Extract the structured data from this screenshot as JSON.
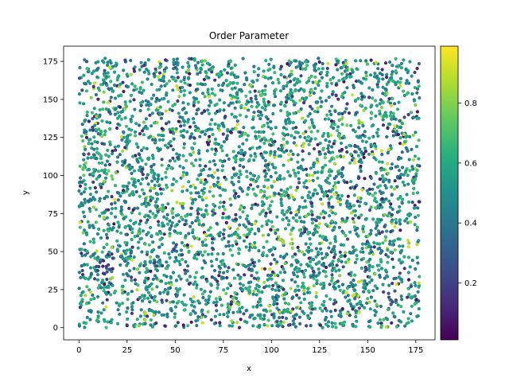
{
  "chart_data": {
    "type": "scatter",
    "title": "Order Parameter",
    "xlabel": "x",
    "ylabel": "y",
    "xlim": [
      -8,
      185
    ],
    "ylim": [
      -8,
      185
    ],
    "x_ticks": [
      0,
      25,
      50,
      75,
      100,
      125,
      150,
      175
    ],
    "y_ticks": [
      0,
      25,
      50,
      75,
      100,
      125,
      150,
      175
    ],
    "colorbar": {
      "colormap": "viridis",
      "range": [
        0.01,
        0.99
      ],
      "ticks": [
        0.2,
        0.4,
        0.6,
        0.8
      ]
    },
    "point_count": 4000,
    "point_distribution": "roughly uniform over x in [0, 177] and y in [0, 177], with small voids",
    "value_distribution": "mostly 0.3-0.7 (teal/green), scattered high values near 0.9 (yellow) and low values near 0.1 (purple)",
    "sample_points": [
      {
        "x": 2,
        "y": 105,
        "value": 0.85
      },
      {
        "x": 20,
        "y": 100,
        "value": 0.8
      },
      {
        "x": 52,
        "y": 87,
        "value": 0.95
      },
      {
        "x": 110,
        "y": 58,
        "value": 0.92
      },
      {
        "x": 92,
        "y": 130,
        "value": 0.75
      },
      {
        "x": 60,
        "y": 150,
        "value": 0.7
      },
      {
        "x": 140,
        "y": 135,
        "value": 0.85
      },
      {
        "x": 130,
        "y": 107,
        "value": 0.8
      },
      {
        "x": 175,
        "y": 55,
        "value": 0.95
      },
      {
        "x": 80,
        "y": 20,
        "value": 0.8
      },
      {
        "x": 15,
        "y": 40,
        "value": 0.25
      },
      {
        "x": 160,
        "y": 20,
        "value": 0.3
      }
    ]
  }
}
